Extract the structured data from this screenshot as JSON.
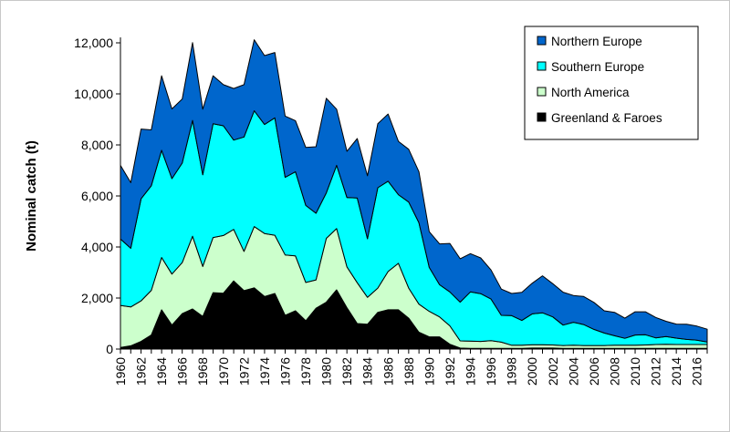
{
  "chart_data": {
    "type": "area",
    "stacked": true,
    "title": "",
    "xlabel": "",
    "ylabel": "Nominal catch (t)",
    "ylim": [
      0,
      12000
    ],
    "yticks": [
      0,
      2000,
      4000,
      6000,
      8000,
      10000,
      12000
    ],
    "ytick_labels": [
      "0",
      "2,000",
      "4,000",
      "6,000",
      "8,000",
      "10,000",
      "12,000"
    ],
    "xlim": [
      1960,
      2017
    ],
    "xtick_labels": [
      "1960",
      "1962",
      "1964",
      "1966",
      "1968",
      "1970",
      "1972",
      "1974",
      "1976",
      "1978",
      "1980",
      "1982",
      "1984",
      "1986",
      "1988",
      "1990",
      "1992",
      "1994",
      "1996",
      "1998",
      "2000",
      "2002",
      "2004",
      "2006",
      "2008",
      "2010",
      "2012",
      "2014",
      "2016"
    ],
    "grid": false,
    "legend_position": "top-right",
    "x": [
      1960,
      1961,
      1962,
      1963,
      1964,
      1965,
      1966,
      1967,
      1968,
      1969,
      1970,
      1971,
      1972,
      1973,
      1974,
      1975,
      1976,
      1977,
      1978,
      1979,
      1980,
      1981,
      1982,
      1983,
      1984,
      1985,
      1986,
      1987,
      1988,
      1989,
      1990,
      1991,
      1992,
      1993,
      1994,
      1995,
      1996,
      1997,
      1998,
      1999,
      2000,
      2001,
      2002,
      2003,
      2004,
      2005,
      2006,
      2007,
      2008,
      2009,
      2010,
      2011,
      2012,
      2013,
      2014,
      2015,
      2016,
      2017
    ],
    "series": [
      {
        "name": "Greenland & Faroes",
        "color": "#000000",
        "values": [
          60,
          130,
          300,
          550,
          1540,
          940,
          1390,
          1570,
          1280,
          2210,
          2190,
          2670,
          2290,
          2400,
          2060,
          2180,
          1320,
          1500,
          1110,
          1600,
          1840,
          2320,
          1620,
          1000,
          970,
          1440,
          1540,
          1540,
          1210,
          660,
          480,
          480,
          190,
          40,
          30,
          30,
          30,
          30,
          30,
          30,
          40,
          40,
          40,
          30,
          30,
          30,
          30,
          30,
          30,
          30,
          30,
          30,
          30,
          30,
          30,
          30,
          30,
          30
        ]
      },
      {
        "name": "North America",
        "color": "#ccffcc",
        "values": [
          1650,
          1520,
          1590,
          1750,
          2050,
          2000,
          2000,
          2850,
          1960,
          2160,
          2260,
          2020,
          1540,
          2400,
          2470,
          2280,
          2370,
          2150,
          1500,
          1110,
          2500,
          2400,
          1600,
          1600,
          1060,
          950,
          1500,
          1820,
          1180,
          1100,
          1000,
          780,
          720,
          280,
          280,
          270,
          300,
          240,
          120,
          120,
          130,
          130,
          120,
          110,
          120,
          110,
          110,
          110,
          120,
          120,
          120,
          130,
          150,
          160,
          150,
          150,
          150,
          150
        ]
      },
      {
        "name": "Southern Europe",
        "color": "#00ffff",
        "values": [
          2600,
          2300,
          4000,
          4100,
          4200,
          3740,
          3900,
          4540,
          3590,
          4460,
          4300,
          3500,
          4480,
          4540,
          4270,
          4600,
          3040,
          3300,
          3020,
          2610,
          1780,
          2480,
          2720,
          3320,
          2290,
          3930,
          3540,
          2690,
          3370,
          3190,
          1720,
          1260,
          1330,
          1520,
          1930,
          1870,
          1630,
          1050,
          1160,
          970,
          1210,
          1250,
          1100,
          800,
          900,
          820,
          630,
          490,
          370,
          270,
          400,
          400,
          260,
          300,
          250,
          200,
          170,
          100
        ]
      },
      {
        "name": "Northern Europe",
        "color": "#0066cc",
        "values": [
          2890,
          2570,
          2730,
          2190,
          2920,
          2730,
          2510,
          3050,
          2570,
          1880,
          1610,
          2020,
          2050,
          2780,
          2700,
          2560,
          2400,
          2000,
          2270,
          2610,
          3710,
          2200,
          1810,
          2330,
          2470,
          2510,
          2630,
          2090,
          2070,
          2000,
          1400,
          1600,
          1900,
          1700,
          1500,
          1400,
          1140,
          1030,
          870,
          1100,
          1200,
          1450,
          1300,
          1290,
          1050,
          1100,
          1060,
          870,
          920,
          790,
          910,
          900,
          800,
          600,
          550,
          590,
          550,
          500
        ]
      }
    ]
  }
}
